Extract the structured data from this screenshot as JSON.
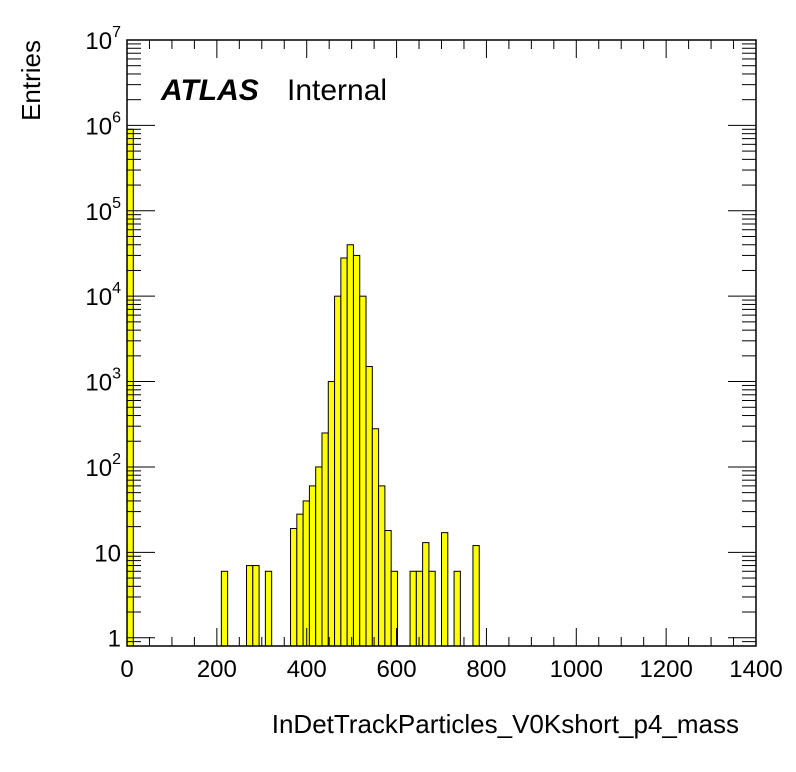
{
  "chart_data": {
    "type": "bar",
    "histogram": true,
    "xlabel": "InDetTrackParticles_V0Kshort_p4_mass",
    "ylabel": "Entries",
    "xlim": [
      0,
      1400
    ],
    "ylim": [
      0.8,
      10000000
    ],
    "y_scale": "log",
    "grid": false,
    "bar_color": "#ffff00",
    "edge_color": "#000000",
    "bin_width": 14,
    "x_ticks": [
      {
        "value": 0,
        "label": "0"
      },
      {
        "value": 200,
        "label": "200"
      },
      {
        "value": 400,
        "label": "400"
      },
      {
        "value": 600,
        "label": "600"
      },
      {
        "value": 800,
        "label": "800"
      },
      {
        "value": 1000,
        "label": "1000"
      },
      {
        "value": 1200,
        "label": "1200"
      },
      {
        "value": 1400,
        "label": "1400"
      }
    ],
    "y_ticks": [
      {
        "value": 1,
        "base": "1",
        "exp": ""
      },
      {
        "value": 10,
        "base": "10",
        "exp": ""
      },
      {
        "value": 100,
        "base": "10",
        "exp": "2"
      },
      {
        "value": 1000,
        "base": "10",
        "exp": "3"
      },
      {
        "value": 10000,
        "base": "10",
        "exp": "4"
      },
      {
        "value": 100000,
        "base": "10",
        "exp": "5"
      },
      {
        "value": 1000000,
        "base": "10",
        "exp": "6"
      },
      {
        "value": 10000000,
        "base": "10",
        "exp": "7"
      }
    ],
    "bins": [
      {
        "x": 0,
        "y": 900000
      },
      {
        "x": 210,
        "y": 6
      },
      {
        "x": 266,
        "y": 7
      },
      {
        "x": 280,
        "y": 7
      },
      {
        "x": 308,
        "y": 6
      },
      {
        "x": 364,
        "y": 19
      },
      {
        "x": 378,
        "y": 28
      },
      {
        "x": 392,
        "y": 40
      },
      {
        "x": 406,
        "y": 60
      },
      {
        "x": 420,
        "y": 100
      },
      {
        "x": 434,
        "y": 250
      },
      {
        "x": 448,
        "y": 1000
      },
      {
        "x": 462,
        "y": 10000
      },
      {
        "x": 476,
        "y": 28000
      },
      {
        "x": 490,
        "y": 40000
      },
      {
        "x": 504,
        "y": 30000
      },
      {
        "x": 518,
        "y": 10000
      },
      {
        "x": 532,
        "y": 1500
      },
      {
        "x": 546,
        "y": 280
      },
      {
        "x": 560,
        "y": 60
      },
      {
        "x": 574,
        "y": 18
      },
      {
        "x": 588,
        "y": 6
      },
      {
        "x": 630,
        "y": 6
      },
      {
        "x": 644,
        "y": 6
      },
      {
        "x": 658,
        "y": 13
      },
      {
        "x": 672,
        "y": 6
      },
      {
        "x": 700,
        "y": 17
      },
      {
        "x": 728,
        "y": 6
      },
      {
        "x": 770,
        "y": 12
      }
    ]
  },
  "annotation": {
    "atlas": "ATLAS",
    "internal": "Internal"
  }
}
